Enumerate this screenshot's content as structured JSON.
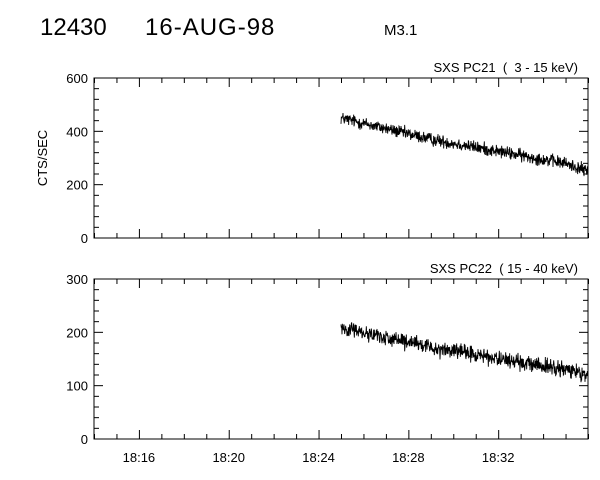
{
  "header": {
    "event_id": "12430",
    "date": "16-AUG-98",
    "flare_class": "M3.1"
  },
  "chart_data": [
    {
      "type": "line",
      "title": "SXS PC21  (  3 - 15 keV)",
      "ylabel": "CTS/SEC",
      "xlabel": "",
      "x_unit": "time (UT)",
      "xlim": [
        "18:14",
        "18:36"
      ],
      "ylim": [
        0,
        600
      ],
      "yticks": [
        0,
        200,
        400,
        600
      ],
      "xticks": [
        "18:16",
        "18:20",
        "18:24",
        "18:28",
        "18:32"
      ],
      "grid": false,
      "series": [
        {
          "x": [
            "18:25:00",
            "18:26:00",
            "18:27:00",
            "18:28:00",
            "18:29:00",
            "18:30:00",
            "18:31:00",
            "18:32:00",
            "18:33:00",
            "18:34:00",
            "18:35:00",
            "18:36:00"
          ],
          "values": [
            450,
            430,
            410,
            390,
            370,
            355,
            340,
            325,
            310,
            295,
            280,
            250
          ],
          "noise": 20
        }
      ]
    },
    {
      "type": "line",
      "title": "SXS PC22  ( 15 - 40 keV)",
      "ylabel": "",
      "xlabel": "",
      "x_unit": "time (UT)",
      "xlim": [
        "18:14",
        "18:36"
      ],
      "ylim": [
        0,
        300
      ],
      "yticks": [
        0,
        100,
        200,
        300
      ],
      "xticks": [
        "18:16",
        "18:20",
        "18:24",
        "18:28",
        "18:32"
      ],
      "grid": false,
      "series": [
        {
          "x": [
            "18:25:00",
            "18:26:00",
            "18:27:00",
            "18:28:00",
            "18:29:00",
            "18:30:00",
            "18:31:00",
            "18:32:00",
            "18:33:00",
            "18:34:00",
            "18:35:00",
            "18:36:00"
          ],
          "values": [
            210,
            200,
            190,
            180,
            172,
            165,
            158,
            150,
            143,
            137,
            130,
            122
          ],
          "noise": 12
        }
      ]
    }
  ]
}
